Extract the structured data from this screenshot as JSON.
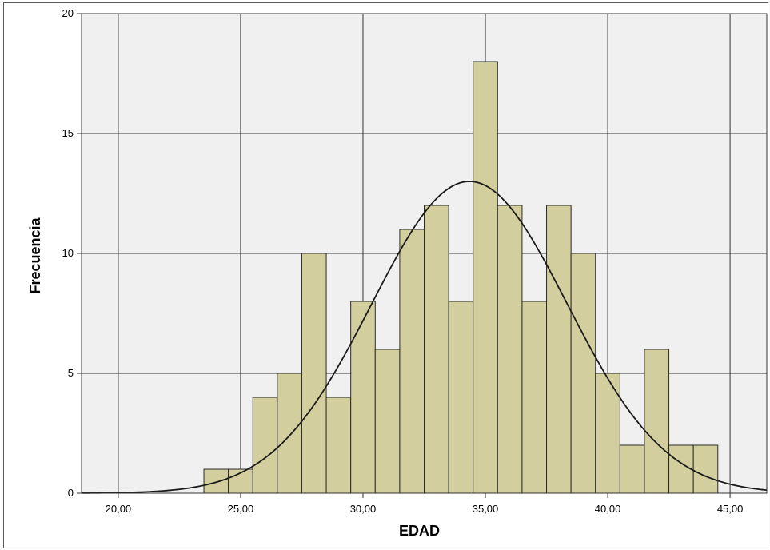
{
  "chart_data": {
    "type": "bar",
    "subtype": "histogram",
    "xlabel": "EDAD",
    "ylabel": "Frecuencia",
    "xlim": [
      18.5,
      46.5
    ],
    "ylim": [
      0,
      20
    ],
    "x_ticks": [
      {
        "value": 20,
        "label": "20,00"
      },
      {
        "value": 25,
        "label": "25,00"
      },
      {
        "value": 30,
        "label": "30,00"
      },
      {
        "value": 35,
        "label": "35,00"
      },
      {
        "value": 40,
        "label": "40,00"
      },
      {
        "value": 45,
        "label": "45,00"
      }
    ],
    "y_ticks": [
      {
        "value": 0,
        "label": "0"
      },
      {
        "value": 5,
        "label": "5"
      },
      {
        "value": 10,
        "label": "10"
      },
      {
        "value": 15,
        "label": "15"
      },
      {
        "value": 20,
        "label": "20"
      }
    ],
    "bin_width": 1,
    "bins": [
      {
        "start": 23.5,
        "end": 24.5,
        "count": 1
      },
      {
        "start": 24.5,
        "end": 25.5,
        "count": 1
      },
      {
        "start": 25.5,
        "end": 26.5,
        "count": 4
      },
      {
        "start": 26.5,
        "end": 27.5,
        "count": 5
      },
      {
        "start": 27.5,
        "end": 28.5,
        "count": 10
      },
      {
        "start": 28.5,
        "end": 29.5,
        "count": 4
      },
      {
        "start": 29.5,
        "end": 30.5,
        "count": 8
      },
      {
        "start": 30.5,
        "end": 31.5,
        "count": 6
      },
      {
        "start": 31.5,
        "end": 32.5,
        "count": 11
      },
      {
        "start": 32.5,
        "end": 33.5,
        "count": 12
      },
      {
        "start": 33.5,
        "end": 34.5,
        "count": 8
      },
      {
        "start": 34.5,
        "end": 35.5,
        "count": 18
      },
      {
        "start": 35.5,
        "end": 36.5,
        "count": 12
      },
      {
        "start": 36.5,
        "end": 37.5,
        "count": 8
      },
      {
        "start": 37.5,
        "end": 38.5,
        "count": 12
      },
      {
        "start": 38.5,
        "end": 39.5,
        "count": 10
      },
      {
        "start": 39.5,
        "end": 40.5,
        "count": 5
      },
      {
        "start": 40.5,
        "end": 41.5,
        "count": 2
      },
      {
        "start": 41.5,
        "end": 42.5,
        "count": 6
      },
      {
        "start": 42.5,
        "end": 43.5,
        "count": 2
      },
      {
        "start": 43.5,
        "end": 44.5,
        "count": 2
      }
    ],
    "normal_curve": {
      "mean": 34.35,
      "sd": 4.0,
      "peak": 13.0
    },
    "grid": true,
    "colors": {
      "bar_fill": "#D3CE9E",
      "bar_stroke": "#2a2a2a",
      "plot_background": "#F0F0F0",
      "grid": "#333333",
      "curve": "#1a1a1a"
    }
  }
}
